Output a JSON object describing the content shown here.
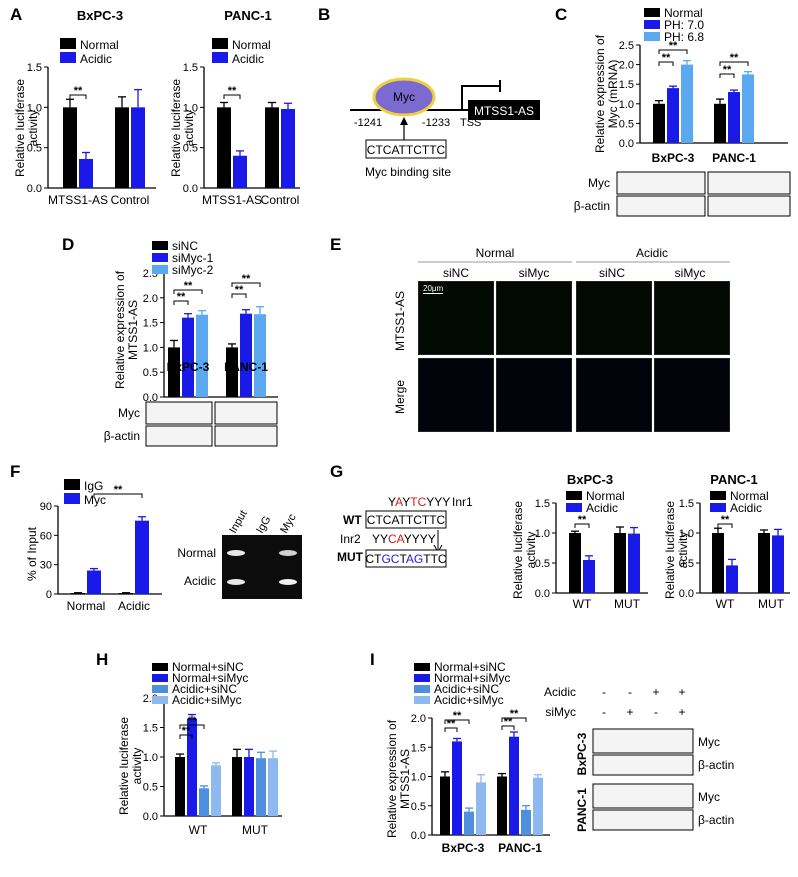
{
  "colors": {
    "normal": "#000000",
    "acidic": "#1a1ae8",
    "ph68": "#5aa9f0",
    "ph70": "#1a1ae8",
    "sinc": "#000000",
    "simyc1": "#1a1ae8",
    "simyc2": "#5aa9f0",
    "acidic_sinc": "#4f8fe0",
    "acidic_simyc": "#8db8f0",
    "red_text": "#d01a1a",
    "blue_text": "#1a1ae8",
    "myc_fill": "#7b6ad0",
    "myc_glow": "#f0d040"
  },
  "letters": {
    "a": "A",
    "b": "B",
    "c": "C",
    "d": "D",
    "e": "E",
    "f": "F",
    "g": "G",
    "h": "H",
    "i": "I"
  },
  "sig": "**",
  "b": {
    "myc": "Myc",
    "mtss1as": "MTSS1-AS",
    "p1241": "-1241",
    "p1233": "-1233",
    "tss": "TSS",
    "site_seq": "CTCATTCTTC",
    "site_label": "Myc binding site"
  },
  "e": {
    "normal": "Normal",
    "acidic": "Acidic",
    "cols": [
      "siNC",
      "siMyc",
      "siNC",
      "siMyc"
    ],
    "rows": [
      "MTSS1-AS",
      "Merge"
    ],
    "scale": "20μm"
  },
  "f": {
    "bands_cols": [
      "Input",
      "IgG",
      "Myc"
    ],
    "bands_rows": [
      "Normal",
      "Acidic"
    ]
  },
  "g": {
    "seq_top_pre": "Y",
    "seq_top_red1": "A",
    "seq_top_mid": "Y",
    "seq_top_red2": "TC",
    "seq_top_post": "YYY",
    "inr1": "Inr1",
    "wt": "WT",
    "wt_seq": "CTCATTCTTC",
    "inr2": "Inr2",
    "inr2_pre": "YY",
    "inr2_red": "CA",
    "inr2_post": "YYYY",
    "mut": "MUT",
    "mut_pre": "CT",
    "mut_b1": "GC",
    "mut_mid": "T",
    "mut_b2": "AG",
    "mut_post": "TTC"
  },
  "blots": {
    "myc": "Myc",
    "bactin": "β-actin",
    "acidic": "Acidic",
    "simyc": "siMyc",
    "bxpc3": "BxPC-3",
    "panc1": "PANC-1",
    "pm_acidic": [
      "-",
      "-",
      "+",
      "+"
    ],
    "pm_simyc": [
      "-",
      "+",
      "-",
      "+"
    ]
  },
  "chart_data": [
    {
      "id": "A1",
      "type": "bar",
      "title": "BxPC-3",
      "ylabel": "Relative luciferase activity",
      "categories": [
        "MTSS1-AS",
        "Control"
      ],
      "ylim": [
        0,
        1.5
      ],
      "yticks": [
        "0.0",
        "0.5",
        "1.0",
        "1.5"
      ],
      "series": [
        {
          "name": "Normal",
          "values": [
            1.0,
            1.0
          ],
          "errors": [
            0.1,
            0.13
          ]
        },
        {
          "name": "Acidic",
          "values": [
            0.36,
            1.0
          ],
          "errors": [
            0.08,
            0.22
          ]
        }
      ]
    },
    {
      "id": "A2",
      "type": "bar",
      "title": "PANC-1",
      "ylabel": "Relative luciferase activity",
      "categories": [
        "MTSS1-AS",
        "Control"
      ],
      "ylim": [
        0,
        1.5
      ],
      "yticks": [
        "0.0",
        "0.5",
        "1.0",
        "1.5"
      ],
      "series": [
        {
          "name": "Normal",
          "values": [
            1.0,
            1.0
          ],
          "errors": [
            0.06,
            0.06
          ]
        },
        {
          "name": "Acidic",
          "values": [
            0.4,
            0.98
          ],
          "errors": [
            0.06,
            0.07
          ]
        }
      ]
    },
    {
      "id": "C",
      "type": "bar",
      "ylabel": "Relative expression of Myc (mRNA)",
      "categories": [
        "BxPC-3",
        "PANC-1"
      ],
      "ylim": [
        0,
        2.5
      ],
      "yticks": [
        "0.0",
        "0.5",
        "1.0",
        "1.5",
        "2.0",
        "2.5"
      ],
      "series": [
        {
          "name": "Normal",
          "values": [
            1.0,
            1.0
          ],
          "errors": [
            0.08,
            0.12
          ]
        },
        {
          "name": "PH: 7.0",
          "values": [
            1.4,
            1.3
          ],
          "errors": [
            0.05,
            0.05
          ]
        },
        {
          "name": "PH: 6.8",
          "values": [
            2.0,
            1.75
          ],
          "errors": [
            0.1,
            0.07
          ]
        }
      ]
    },
    {
      "id": "D",
      "type": "bar",
      "ylabel": "Relative expression of MTSS1-AS",
      "categories": [
        "BxPC-3",
        "PANC-1"
      ],
      "ylim": [
        0,
        2.5
      ],
      "yticks": [
        "0.0",
        "0.5",
        "1.0",
        "1.5",
        "2.0",
        "2.5"
      ],
      "series": [
        {
          "name": "siNC",
          "values": [
            1.0,
            1.0
          ],
          "errors": [
            0.14,
            0.07
          ]
        },
        {
          "name": "siMyc-1",
          "values": [
            1.6,
            1.68
          ],
          "errors": [
            0.08,
            0.08
          ]
        },
        {
          "name": "siMyc-2",
          "values": [
            1.66,
            1.67
          ],
          "errors": [
            0.08,
            0.15
          ]
        }
      ]
    },
    {
      "id": "F",
      "type": "bar",
      "ylabel": "% of Input",
      "categories": [
        "Normal",
        "Acidic"
      ],
      "ylim": [
        0,
        90
      ],
      "yticks": [
        "0",
        "30",
        "60",
        "90"
      ],
      "series": [
        {
          "name": "IgG",
          "values": [
            1.0,
            1.0
          ],
          "errors": [
            0.3,
            0.3
          ]
        },
        {
          "name": "Myc",
          "values": [
            24,
            75
          ],
          "errors": [
            2,
            4
          ]
        }
      ]
    },
    {
      "id": "G1",
      "type": "bar",
      "title": "BxPC-3",
      "ylabel": "Relative luciferase activity",
      "categories": [
        "WT",
        "MUT"
      ],
      "ylim": [
        0,
        1.5
      ],
      "yticks": [
        "0.0",
        "0.5",
        "1.0",
        "1.5"
      ],
      "series": [
        {
          "name": "Normal",
          "values": [
            1.0,
            1.0
          ],
          "errors": [
            0.03,
            0.1
          ]
        },
        {
          "name": "Acidic",
          "values": [
            0.55,
            0.99
          ],
          "errors": [
            0.07,
            0.1
          ]
        }
      ]
    },
    {
      "id": "G2",
      "type": "bar",
      "title": "PANC-1",
      "ylabel": "Relative luciferase activity",
      "categories": [
        "WT",
        "MUT"
      ],
      "ylim": [
        0,
        1.5
      ],
      "yticks": [
        "0.0",
        "0.5",
        "1.0",
        "1.5"
      ],
      "series": [
        {
          "name": "Normal",
          "values": [
            1.0,
            1.0
          ],
          "errors": [
            0.08,
            0.05
          ]
        },
        {
          "name": "Acidic",
          "values": [
            0.46,
            0.96
          ],
          "errors": [
            0.1,
            0.1
          ]
        }
      ]
    },
    {
      "id": "H",
      "type": "bar",
      "ylabel": "Relative luciferase activity",
      "categories": [
        "WT",
        "MUT"
      ],
      "ylim": [
        0,
        2.0
      ],
      "yticks": [
        "0.0",
        "0.5",
        "1.0",
        "1.5",
        "2.0"
      ],
      "series": [
        {
          "name": "Normal+siNC",
          "values": [
            1.0,
            1.0
          ],
          "errors": [
            0.05,
            0.13
          ]
        },
        {
          "name": "Normal+siMyc",
          "values": [
            1.65,
            1.0
          ],
          "errors": [
            0.07,
            0.13
          ]
        },
        {
          "name": "Acidic+siNC",
          "values": [
            0.47,
            0.98
          ],
          "errors": [
            0.04,
            0.1
          ]
        },
        {
          "name": "Acidic+siMyc",
          "values": [
            0.86,
            0.98
          ],
          "errors": [
            0.04,
            0.12
          ]
        }
      ]
    },
    {
      "id": "I",
      "type": "bar",
      "ylabel": "Relative expression of MTSS1-AS",
      "categories": [
        "BxPC-3",
        "PANC-1"
      ],
      "ylim": [
        0,
        2.0
      ],
      "yticks": [
        "0.0",
        "0.5",
        "1.0",
        "1.5",
        "2.0"
      ],
      "series": [
        {
          "name": "Normal+siNC",
          "values": [
            1.0,
            1.0
          ],
          "errors": [
            0.08,
            0.05
          ]
        },
        {
          "name": "Normal+siMyc",
          "values": [
            1.6,
            1.68
          ],
          "errors": [
            0.05,
            0.08
          ]
        },
        {
          "name": "Acidic+siNC",
          "values": [
            0.4,
            0.43
          ],
          "errors": [
            0.06,
            0.07
          ]
        },
        {
          "name": "Acidic+siMyc",
          "values": [
            0.9,
            0.98
          ],
          "errors": [
            0.13,
            0.05
          ]
        }
      ]
    }
  ]
}
